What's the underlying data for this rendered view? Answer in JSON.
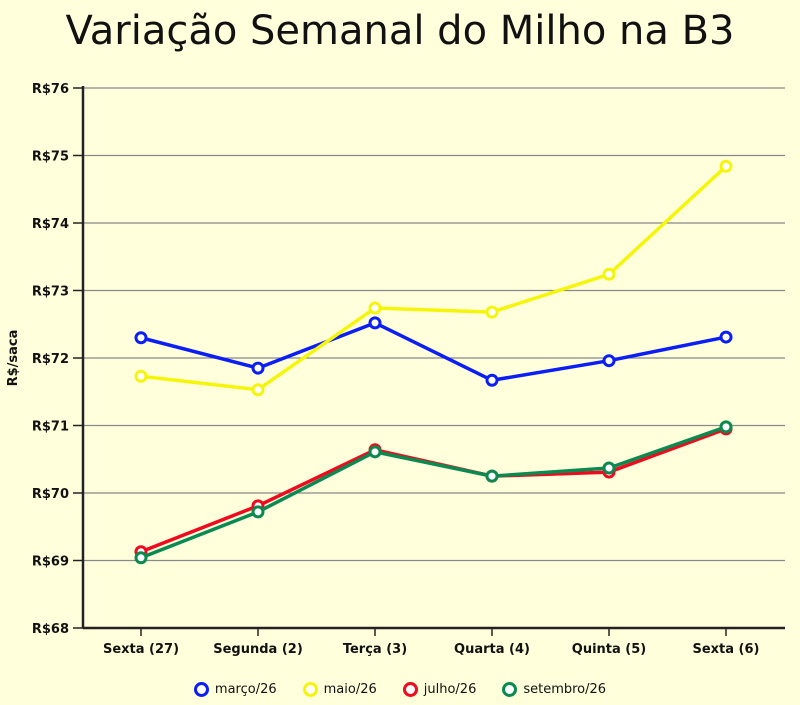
{
  "chart_data": {
    "type": "line",
    "title": "Variação Semanal do Milho na B3",
    "ylabel": "R$/saca",
    "xlabel": "",
    "ylim": [
      68,
      76
    ],
    "yticks": [
      68,
      69,
      70,
      71,
      72,
      73,
      74,
      75,
      76
    ],
    "ytick_prefix": "R$",
    "grid": true,
    "legend": "bottom",
    "categories": [
      "Sexta (27)",
      "Segunda (2)",
      "Terça (3)",
      "Quarta (4)",
      "Quinta (5)",
      "Sexta (6)"
    ],
    "series": [
      {
        "name": "março/26",
        "color": "#0a1ef5",
        "values": [
          72.3,
          71.85,
          72.52,
          71.67,
          71.96,
          72.31
        ]
      },
      {
        "name": "maio/26",
        "color": "#f5f50a",
        "values": [
          71.73,
          71.53,
          72.74,
          72.68,
          73.24,
          74.84
        ]
      },
      {
        "name": "julho/26",
        "color": "#f00a1e",
        "values": [
          69.13,
          69.81,
          70.64,
          70.25,
          70.31,
          70.95
        ]
      },
      {
        "name": "setembro/26",
        "color": "#0a8a50",
        "values": [
          69.04,
          69.72,
          70.61,
          70.25,
          70.37,
          70.98
        ]
      }
    ]
  }
}
